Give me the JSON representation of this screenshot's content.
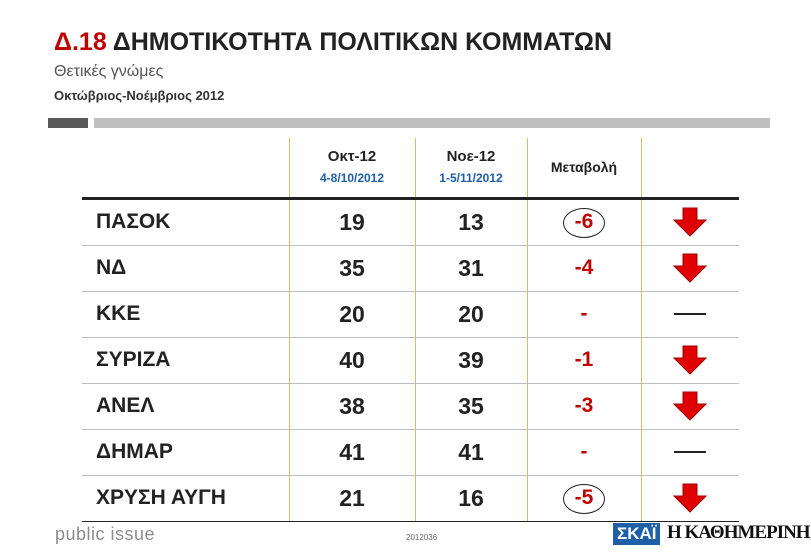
{
  "header": {
    "code": "Δ.18",
    "title": "ΔΗΜΟΤΙΚΟΤΗΤΑ ΠΟΛΙΤΙΚΩΝ ΚΟΜΜΑΤΩΝ",
    "subtitle": "Θετικές γνώμες",
    "period": "Οκτώβριος-Νοέμβριος 2012"
  },
  "chart_data": {
    "type": "table",
    "columns": [
      {
        "label": "Οκτ-12",
        "sublabel": "4-8/10/2012"
      },
      {
        "label": "Νοε-12",
        "sublabel": "1-5/11/2012"
      },
      {
        "label": "Μεταβολή"
      }
    ],
    "rows": [
      {
        "party": "ΠΑΣΟΚ",
        "oct": 19,
        "nov": 13,
        "change": "-6",
        "circled": true,
        "trend": "down"
      },
      {
        "party": "ΝΔ",
        "oct": 35,
        "nov": 31,
        "change": "-4",
        "circled": false,
        "trend": "down"
      },
      {
        "party": "ΚΚΕ",
        "oct": 20,
        "nov": 20,
        "change": "-",
        "circled": false,
        "trend": "flat"
      },
      {
        "party": "ΣΥΡΙΖΑ",
        "oct": 40,
        "nov": 39,
        "change": "-1",
        "circled": false,
        "trend": "down"
      },
      {
        "party": "ΑΝΕΛ",
        "oct": 38,
        "nov": 35,
        "change": "-3",
        "circled": false,
        "trend": "down"
      },
      {
        "party": "ΔΗΜΑΡ",
        "oct": 41,
        "nov": 41,
        "change": "-",
        "circled": false,
        "trend": "flat"
      },
      {
        "party": "ΧΡΥΣΗ ΑΥΓΗ",
        "oct": 21,
        "nov": 16,
        "change": "-5",
        "circled": true,
        "trend": "down"
      }
    ],
    "colors": {
      "accent": "#c00000",
      "date_blue": "#1f5fa8",
      "arrow_red": "#e00000"
    }
  },
  "footer": {
    "source": "public issue",
    "code": "2012036",
    "logo_1": "ΣΚΑΪ",
    "logo_2": "Η ΚΑΘΗΜΕΡΙΝΗ"
  }
}
